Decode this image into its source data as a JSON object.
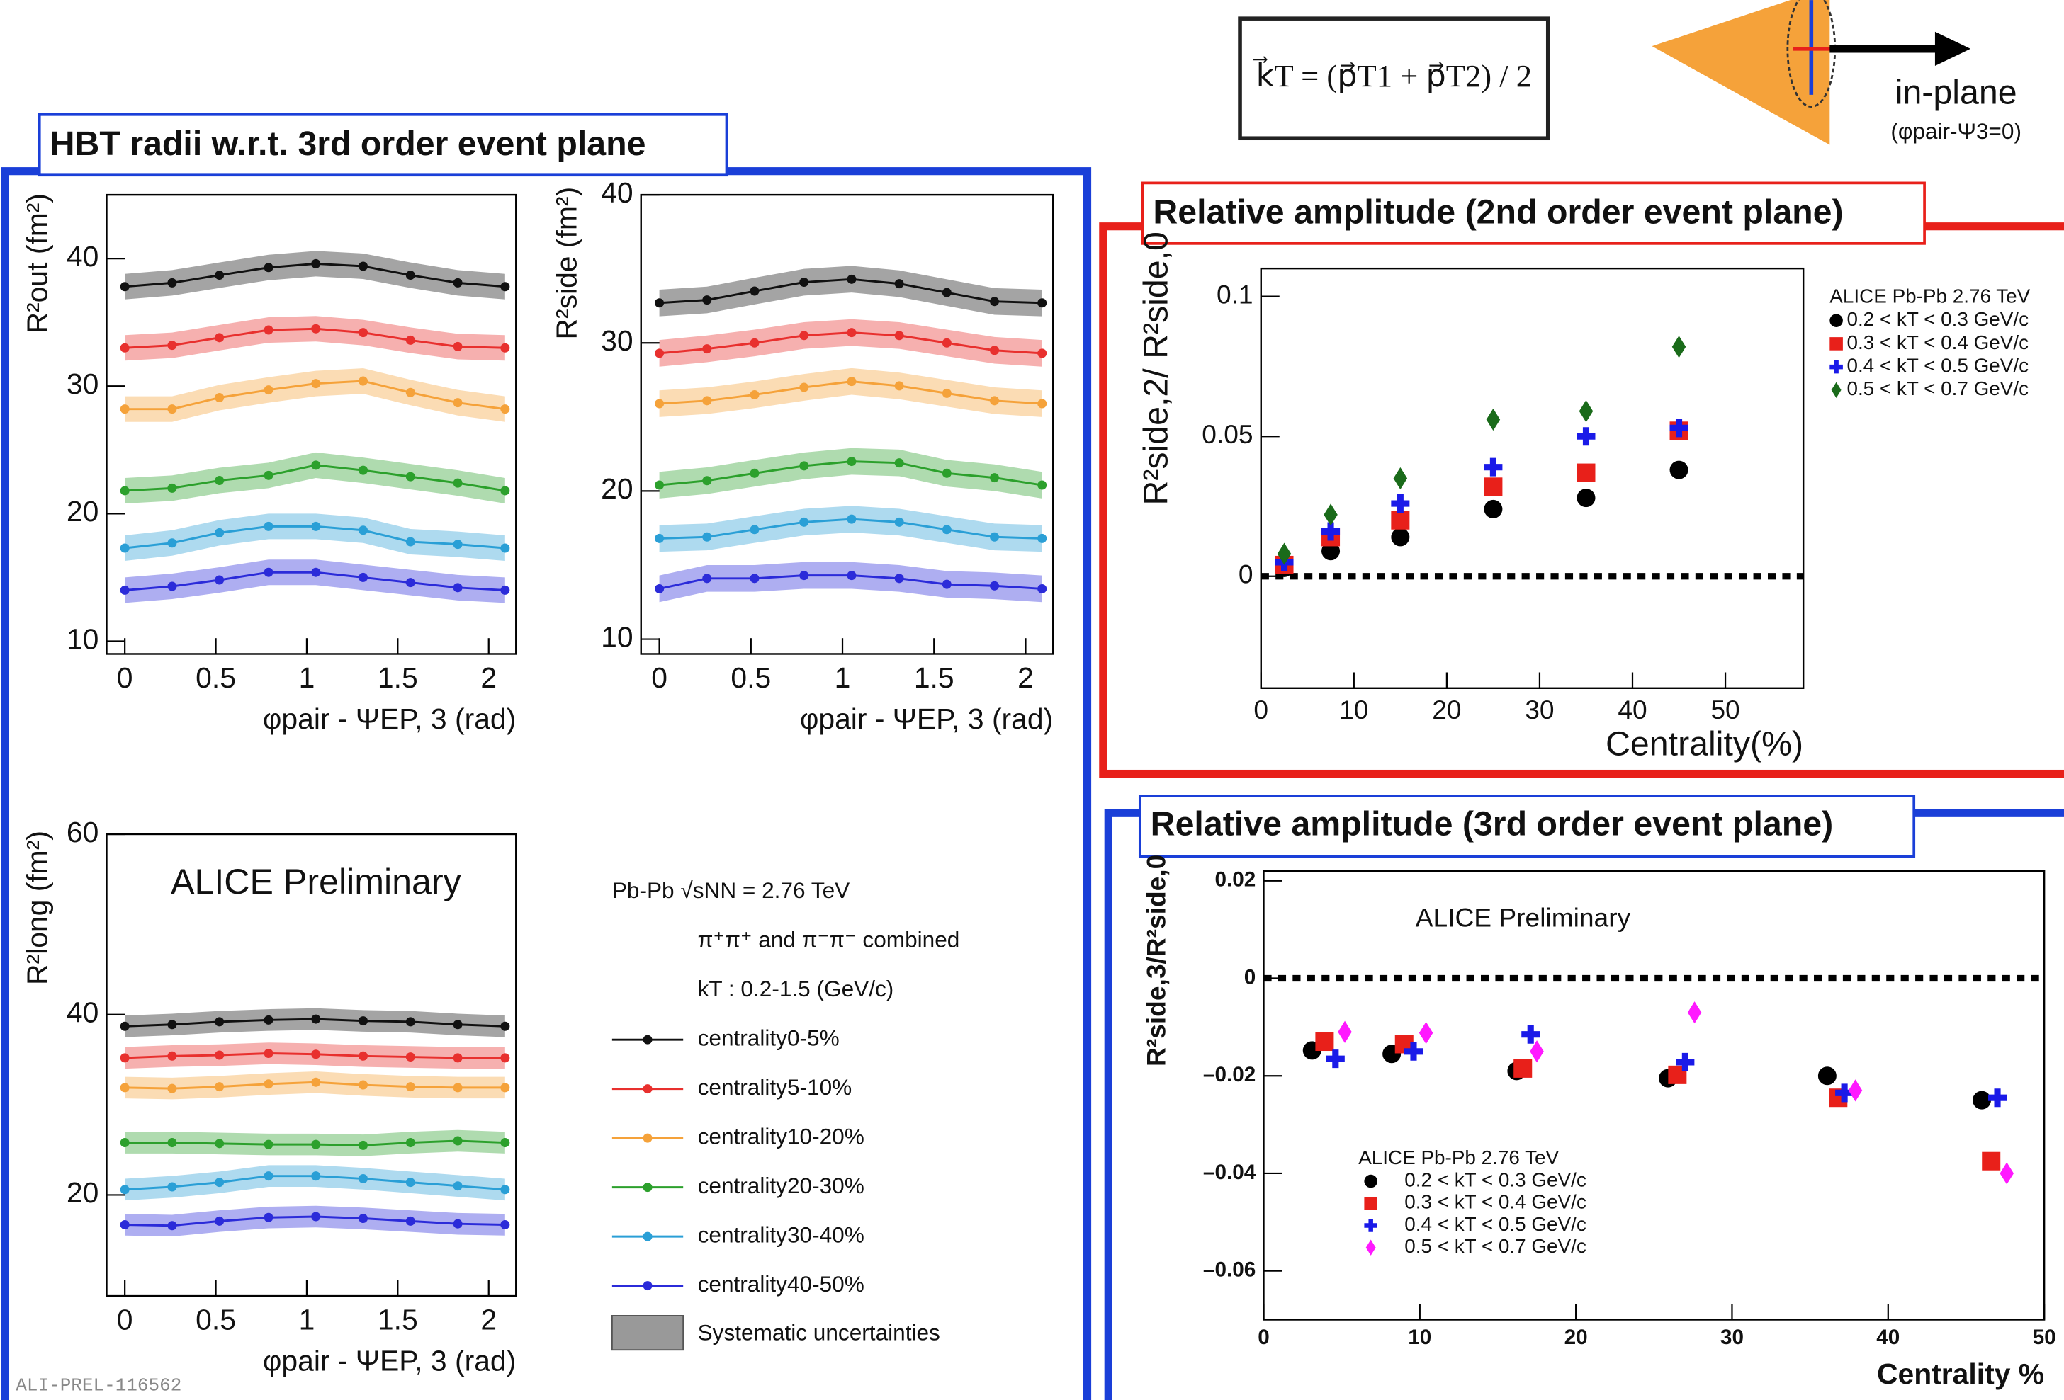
{
  "header": {
    "hbt_title": "HBT radii w.r.t. 3rd order event plane",
    "amp2_title": "Relative amplitude (2nd order event plane)",
    "amp3_title": "Relative amplitude (3rd order event plane)",
    "formula": "k⃗T = (p⃗T1 + p⃗T2) / 2",
    "diagram_label": "in-plane",
    "diagram_sublabel": "(φpair-Ψ3=0)",
    "footer_id": "ALI-PREL-116562"
  },
  "chart_data": [
    {
      "type": "line",
      "ylabel": "R²out (fm²)",
      "xlabel": "φpair - ΨEP, 3 (rad)",
      "x": [
        0,
        0.26,
        0.52,
        0.79,
        1.05,
        1.31,
        1.57,
        1.83,
        2.09
      ],
      "xlim": [
        -0.1,
        2.15
      ],
      "xticks": [
        0,
        0.5,
        1,
        1.5,
        2
      ],
      "ylim": [
        9,
        45
      ],
      "yticks": [
        10,
        20,
        30,
        40
      ],
      "series": [
        {
          "color": "#111111",
          "sys": 1.0,
          "values": [
            37.8,
            38.1,
            38.7,
            39.3,
            39.6,
            39.4,
            38.7,
            38.1,
            37.8
          ]
        },
        {
          "color": "#e8302e",
          "sys": 1.0,
          "values": [
            33.0,
            33.2,
            33.8,
            34.4,
            34.5,
            34.2,
            33.6,
            33.1,
            33.0
          ]
        },
        {
          "color": "#f5a23a",
          "sys": 1.0,
          "values": [
            28.2,
            28.2,
            29.1,
            29.7,
            30.2,
            30.4,
            29.5,
            28.7,
            28.2
          ]
        },
        {
          "color": "#2ca02c",
          "sys": 1.0,
          "values": [
            21.8,
            22.0,
            22.6,
            23.0,
            23.8,
            23.4,
            22.9,
            22.4,
            21.8
          ]
        },
        {
          "color": "#2a9fd6",
          "sys": 1.0,
          "values": [
            17.3,
            17.7,
            18.5,
            19.0,
            19.0,
            18.7,
            17.8,
            17.6,
            17.3
          ]
        },
        {
          "color": "#2b2bd9",
          "sys": 1.0,
          "values": [
            14.0,
            14.3,
            14.8,
            15.4,
            15.4,
            15.0,
            14.6,
            14.2,
            14.0
          ]
        }
      ]
    },
    {
      "type": "line",
      "ylabel": "R²side (fm²)",
      "xlabel": "φpair - ΨEP, 3 (rad)",
      "x": [
        0,
        0.26,
        0.52,
        0.79,
        1.05,
        1.31,
        1.57,
        1.83,
        2.09
      ],
      "xlim": [
        -0.1,
        2.15
      ],
      "xticks": [
        0,
        0.5,
        1,
        1.5,
        2
      ],
      "ylim": [
        9,
        40
      ],
      "yticks": [
        10,
        20,
        30,
        40
      ],
      "series": [
        {
          "color": "#111111",
          "sys": 0.9,
          "values": [
            32.7,
            32.9,
            33.5,
            34.1,
            34.3,
            34.0,
            33.4,
            32.8,
            32.7
          ]
        },
        {
          "color": "#e8302e",
          "sys": 0.9,
          "values": [
            29.3,
            29.6,
            30.0,
            30.5,
            30.7,
            30.5,
            30.0,
            29.5,
            29.3
          ]
        },
        {
          "color": "#f5a23a",
          "sys": 0.9,
          "values": [
            25.9,
            26.1,
            26.5,
            27.0,
            27.4,
            27.1,
            26.6,
            26.1,
            25.9
          ]
        },
        {
          "color": "#2ca02c",
          "sys": 0.9,
          "values": [
            20.4,
            20.7,
            21.2,
            21.7,
            22.0,
            21.9,
            21.2,
            20.9,
            20.4
          ]
        },
        {
          "color": "#2a9fd6",
          "sys": 0.9,
          "values": [
            16.8,
            16.9,
            17.4,
            17.9,
            18.1,
            17.9,
            17.4,
            16.9,
            16.8
          ]
        },
        {
          "color": "#2b2bd9",
          "sys": 0.9,
          "values": [
            13.4,
            14.1,
            14.1,
            14.3,
            14.3,
            14.1,
            13.7,
            13.6,
            13.4
          ]
        }
      ]
    },
    {
      "type": "line",
      "ylabel": "R²long (fm²)",
      "xlabel": "φpair - ΨEP, 3 (rad)",
      "annotation": "ALICE Preliminary",
      "legend_title": [
        "Pb-Pb √sNN = 2.76 TeV",
        "π⁺π⁺ and π⁻π⁻ combined",
        "kT : 0.2-1.5 (GeV/c)"
      ],
      "band_label": "Systematic uncertainties",
      "x": [
        0,
        0.26,
        0.52,
        0.79,
        1.05,
        1.31,
        1.57,
        1.83,
        2.09
      ],
      "xlim": [
        -0.1,
        2.15
      ],
      "xticks": [
        0,
        0.5,
        1,
        1.5,
        2
      ],
      "ylim": [
        8.8,
        60
      ],
      "yticks": [
        20,
        40,
        60
      ],
      "series": [
        {
          "name": "centrality0-5%",
          "color": "#111111",
          "sys": 1.2,
          "values": [
            38.7,
            38.9,
            39.2,
            39.4,
            39.5,
            39.3,
            39.2,
            38.9,
            38.7
          ]
        },
        {
          "name": "centrality5-10%",
          "color": "#e8302e",
          "sys": 1.2,
          "values": [
            35.2,
            35.4,
            35.5,
            35.7,
            35.6,
            35.4,
            35.3,
            35.2,
            35.2
          ]
        },
        {
          "name": "centrality10-20%",
          "color": "#f5a23a",
          "sys": 1.2,
          "values": [
            31.9,
            31.8,
            32.0,
            32.3,
            32.5,
            32.2,
            32.0,
            31.9,
            31.9
          ]
        },
        {
          "name": "centrality20-30%",
          "color": "#2ca02c",
          "sys": 1.2,
          "values": [
            25.8,
            25.8,
            25.7,
            25.6,
            25.6,
            25.5,
            25.8,
            26.0,
            25.8
          ]
        },
        {
          "name": "centrality30-40%",
          "color": "#2a9fd6",
          "sys": 1.2,
          "values": [
            20.6,
            20.9,
            21.4,
            22.1,
            22.1,
            21.8,
            21.4,
            21.0,
            20.6
          ]
        },
        {
          "name": "centrality40-50%",
          "color": "#2b2bd9",
          "sys": 1.2,
          "values": [
            16.7,
            16.6,
            17.1,
            17.5,
            17.6,
            17.4,
            17.1,
            16.8,
            16.7
          ]
        }
      ]
    },
    {
      "type": "scatter",
      "ylabel": "R²side,2/ R²side,0",
      "xlabel": "Centrality(%)",
      "legend_title": [
        "ALICE Pb-Pb 2.76 TeV"
      ],
      "reference_line": 0,
      "xlim": [
        0,
        58.4
      ],
      "xticks": [
        0,
        10,
        20,
        30,
        40,
        50
      ],
      "ylim": [
        -0.04,
        0.11
      ],
      "yticks": [
        0,
        0.05,
        0.1
      ],
      "series": [
        {
          "name": "0.2 < kT < 0.3 GeV/c",
          "color": "#000000",
          "marker": "circle",
          "x": [
            2.5,
            7.5,
            15,
            25,
            35,
            45
          ],
          "values": [
            0.003,
            0.009,
            0.014,
            0.024,
            0.028,
            0.038
          ]
        },
        {
          "name": "0.3 < kT < 0.4 GeV/c",
          "color": "#e8201a",
          "marker": "square",
          "x": [
            2.5,
            7.5,
            15,
            25,
            35,
            45
          ],
          "values": [
            0.004,
            0.014,
            0.02,
            0.032,
            0.037,
            0.052
          ]
        },
        {
          "name": "0.4 < kT < 0.5 GeV/c",
          "color": "#1a1ae8",
          "marker": "plus",
          "x": [
            2.5,
            7.5,
            15,
            25,
            35,
            45
          ],
          "values": [
            0.005,
            0.016,
            0.026,
            0.039,
            0.05,
            0.053
          ]
        },
        {
          "name": "0.5 < kT < 0.7 GeV/c",
          "color": "#1a6b1a",
          "marker": "diamond",
          "x": [
            2.5,
            7.5,
            15,
            25,
            35,
            45
          ],
          "values": [
            0.008,
            0.022,
            0.035,
            0.056,
            0.059,
            0.082
          ]
        }
      ]
    },
    {
      "type": "scatter",
      "ylabel": "R²side,3/R²side,0",
      "xlabel": "Centrality %",
      "annotation": "ALICE Preliminary",
      "legend_title": [
        "ALICE Pb-Pb 2.76 TeV"
      ],
      "reference_line": 0,
      "xlim": [
        0,
        50
      ],
      "xticks": [
        0,
        10,
        20,
        30,
        40,
        50
      ],
      "ylim": [
        -0.07,
        0.022
      ],
      "yticks": [
        0.02,
        0,
        {
          "value": -0.02,
          "label": "–0.02"
        },
        {
          "value": -0.04,
          "label": "–0.04"
        },
        {
          "value": -0.06,
          "label": "–0.06"
        }
      ],
      "series": [
        {
          "name": "0.2 < kT < 0.3 GeV/c",
          "color": "#000000",
          "marker": "circle",
          "x": [
            3.1,
            8.2,
            16.2,
            25.9,
            36.1,
            46.0
          ],
          "values": [
            -0.0148,
            -0.0155,
            -0.019,
            -0.0205,
            -0.02,
            -0.025
          ]
        },
        {
          "name": "0.3 < kT < 0.4 GeV/c",
          "color": "#e8201a",
          "marker": "square",
          "x": [
            3.9,
            9.0,
            16.6,
            26.5,
            36.8,
            46.6
          ],
          "values": [
            -0.013,
            -0.0135,
            -0.0185,
            -0.0198,
            -0.0245,
            -0.0375
          ]
        },
        {
          "name": "0.4 < kT < 0.5 GeV/c",
          "color": "#1a1ae8",
          "marker": "plus",
          "x": [
            4.6,
            9.6,
            17.1,
            27.0,
            37.2,
            47.0
          ],
          "values": [
            -0.0165,
            -0.015,
            -0.0115,
            -0.0172,
            -0.0235,
            -0.0245
          ]
        },
        {
          "name": "0.5 < kT < 0.7 GeV/c",
          "color": "#ff19ff",
          "marker": "diamond",
          "x": [
            5.2,
            10.4,
            17.5,
            27.6,
            37.9,
            47.6
          ],
          "values": [
            -0.011,
            -0.0112,
            -0.015,
            -0.007,
            -0.023,
            -0.04
          ]
        }
      ]
    }
  ]
}
